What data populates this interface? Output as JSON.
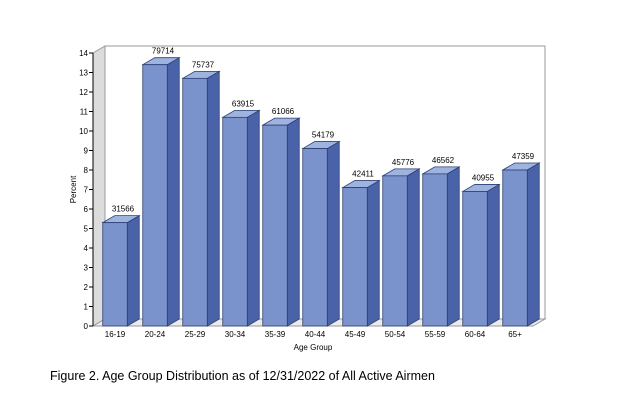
{
  "caption": "Figure 2. Age Group Distribution as of 12/31/2022 of All Active Airmen",
  "chart_data": {
    "type": "bar",
    "title": "",
    "xlabel": "Age Group",
    "ylabel": "Percent",
    "ylim": [
      0,
      14
    ],
    "yticks": [
      "0",
      "1",
      "2",
      "3",
      "4",
      "5",
      "6",
      "7",
      "8",
      "9",
      "10",
      "11",
      "12",
      "13",
      "14"
    ],
    "grid": false,
    "categories": [
      "16-19",
      "20-24",
      "25-29",
      "30-34",
      "35-39",
      "40-44",
      "45-49",
      "50-54",
      "55-59",
      "60-64",
      "65+"
    ],
    "values": [
      5.3,
      13.4,
      12.7,
      10.7,
      10.3,
      9.1,
      7.1,
      7.7,
      7.8,
      6.9,
      8.0
    ],
    "data_labels": [
      "31566",
      "79714",
      "75737",
      "63915",
      "61066",
      "54179",
      "42411",
      "45776",
      "46562",
      "40955",
      "47359"
    ],
    "colors": {
      "bar_front": "#7b93cd",
      "bar_side": "#4a63a8",
      "bar_top": "#9fb3e0",
      "wall": "#ffffff",
      "floor": "#ebebeb"
    }
  }
}
